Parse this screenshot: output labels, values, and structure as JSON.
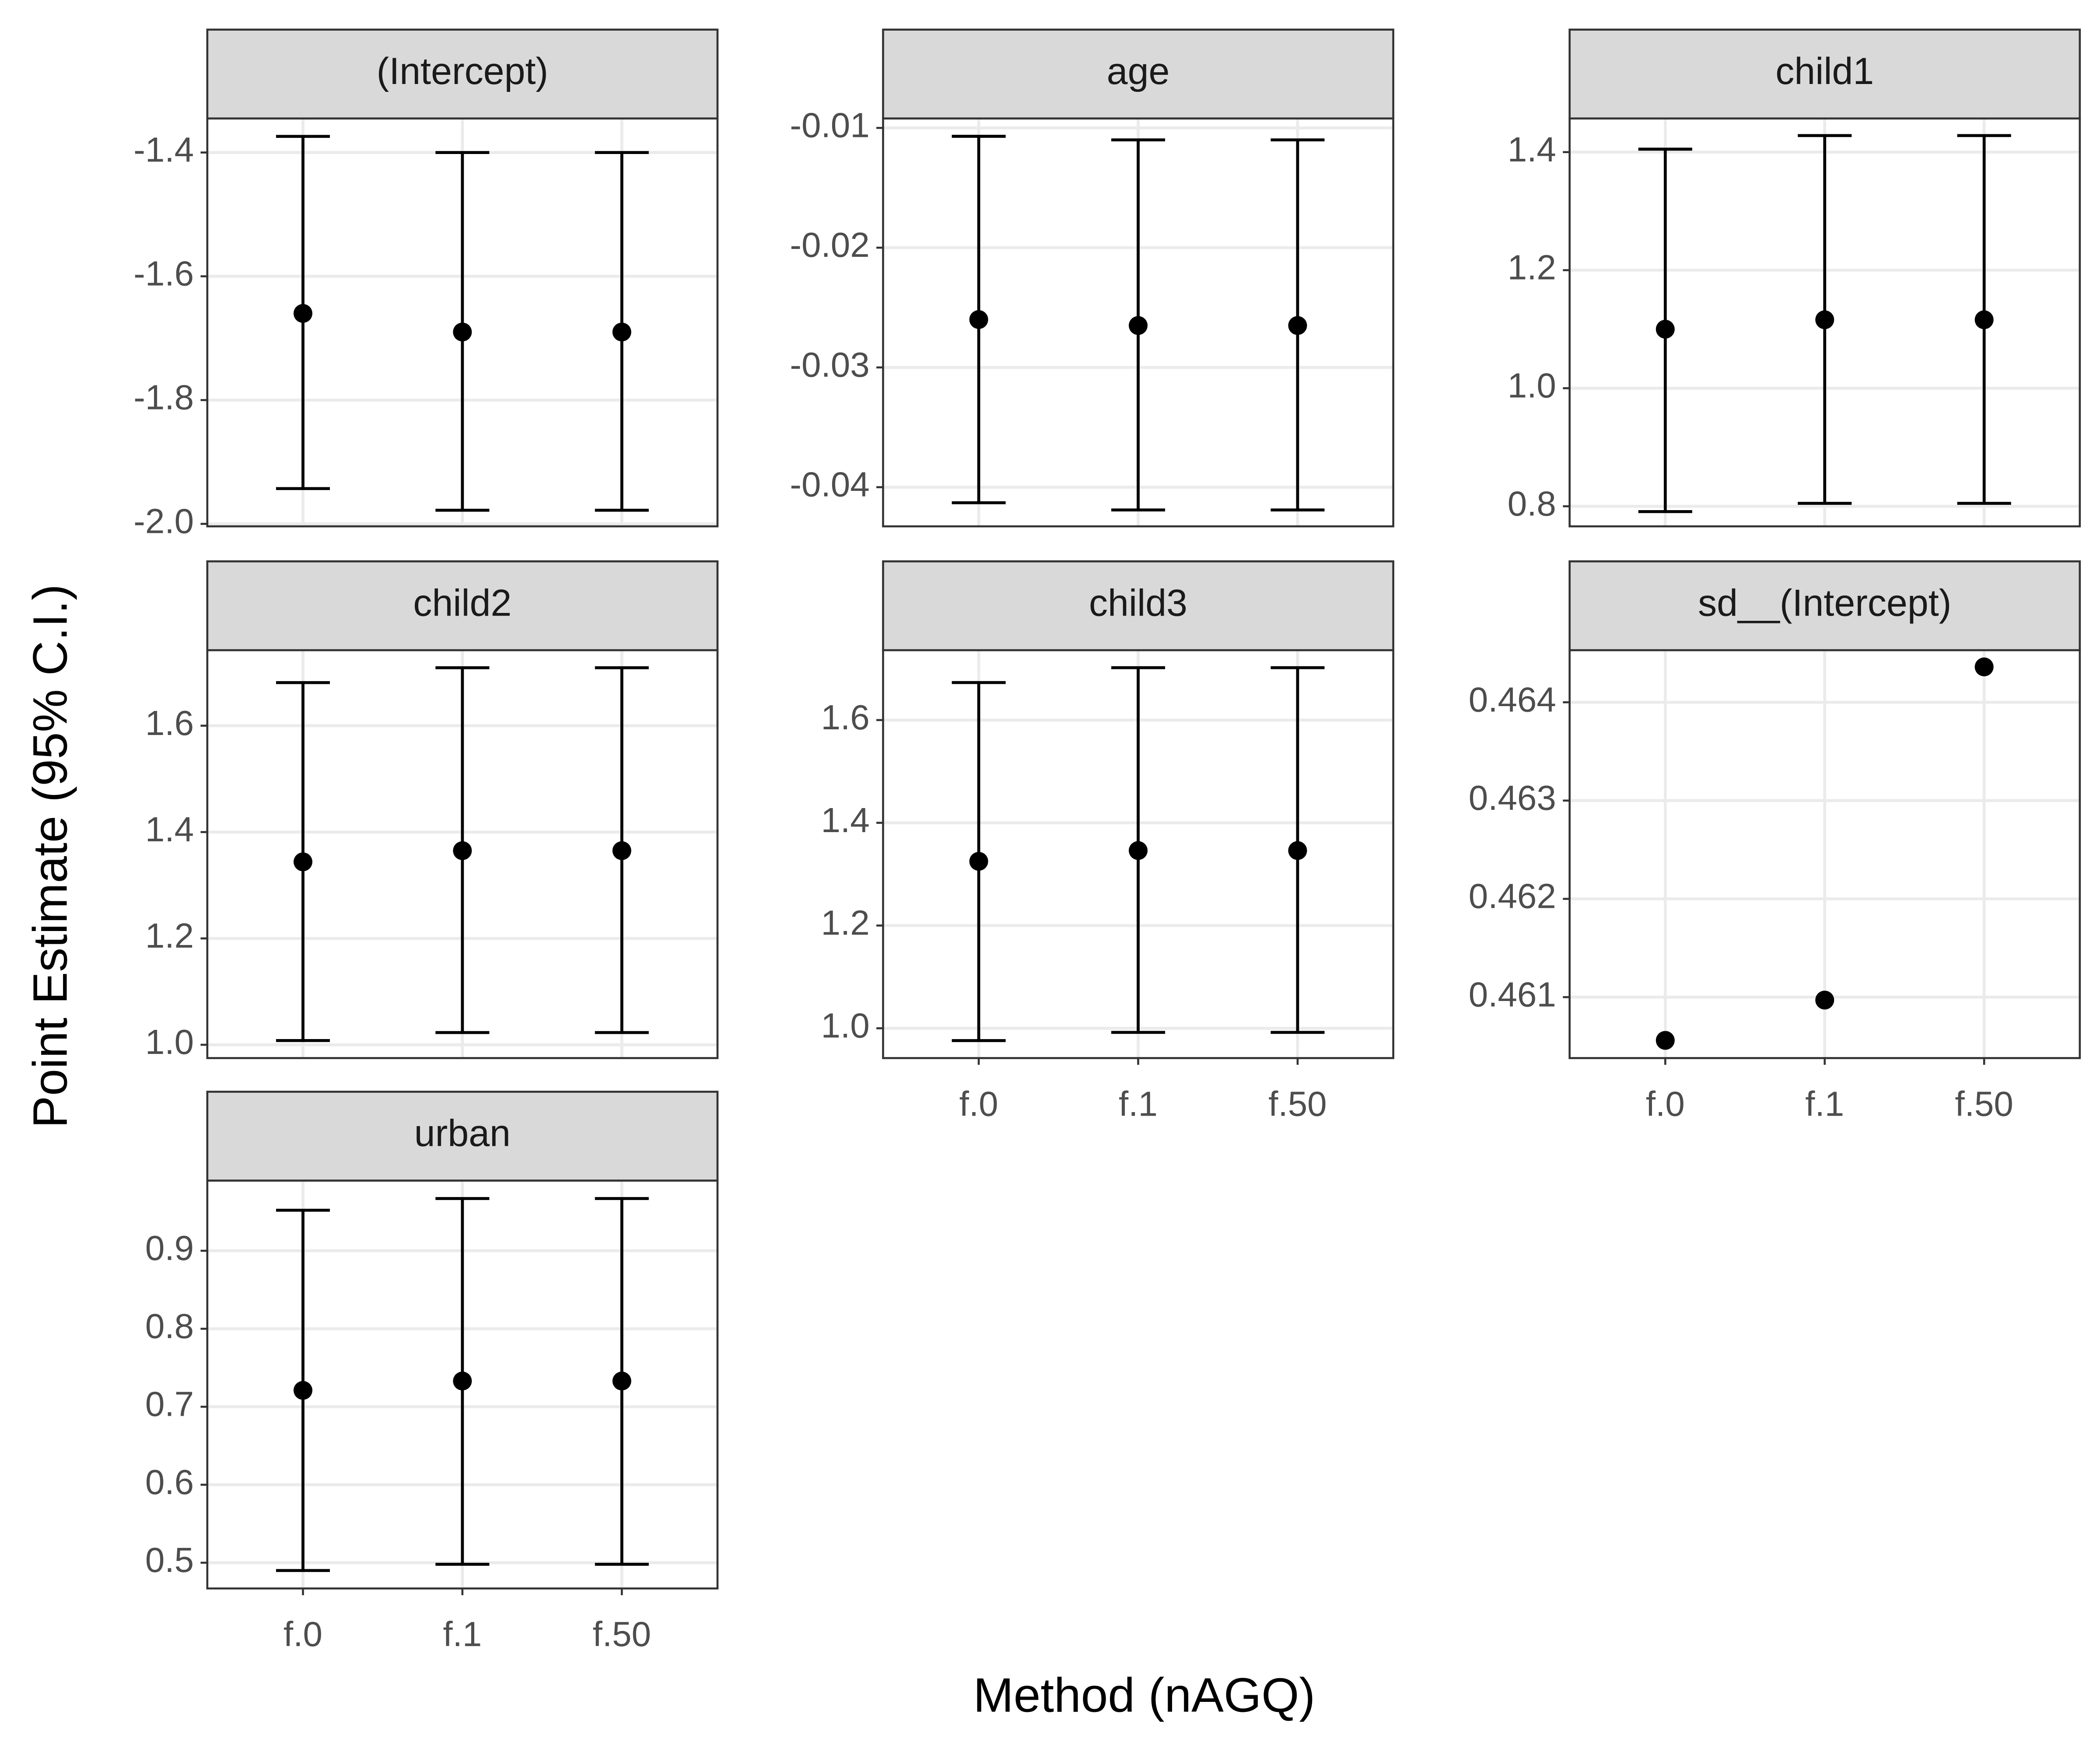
{
  "x_label": "Method (nAGQ)",
  "y_label": "Point Estimate (95% C.I.)",
  "chart_data": [
    {
      "type": "errorbar",
      "title": "(Intercept)",
      "categories": [
        "f.0",
        "f.1",
        "f.50"
      ],
      "values": [
        -1.66,
        -1.69,
        -1.69
      ],
      "lower": [
        -1.943,
        -1.978,
        -1.978
      ],
      "upper": [
        -1.374,
        -1.4,
        -1.4
      ],
      "ylim": [
        -2.004,
        -1.345
      ],
      "yticks": [
        {
          "value": -2.0,
          "label": "-2.0"
        },
        -1.8,
        -1.6,
        -1.4
      ]
    },
    {
      "type": "errorbar",
      "title": "age",
      "categories": [
        "f.0",
        "f.1",
        "f.50"
      ],
      "values": [
        -0.026,
        -0.0265,
        -0.0265
      ],
      "lower": [
        -0.0413,
        -0.0419,
        -0.0419
      ],
      "upper": [
        -0.0107,
        -0.011,
        -0.011
      ],
      "ylim": [
        -0.04327,
        -0.00921
      ],
      "yticks": [
        -0.04,
        -0.03,
        -0.02,
        -0.01
      ]
    },
    {
      "type": "errorbar",
      "title": "child1",
      "categories": [
        "f.0",
        "f.1",
        "f.50"
      ],
      "values": [
        1.1,
        1.116,
        1.116
      ],
      "lower": [
        0.791,
        0.805,
        0.805
      ],
      "upper": [
        1.405,
        1.428,
        1.428
      ],
      "ylim": [
        0.766,
        1.457
      ],
      "yticks": [
        0.8,
        {
          "value": 1.0,
          "label": "1.0"
        },
        1.2,
        1.4
      ]
    },
    {
      "type": "errorbar",
      "title": "child2",
      "categories": [
        "f.0",
        "f.1",
        "f.50"
      ],
      "values": [
        1.344,
        1.365,
        1.365
      ],
      "lower": [
        1.008,
        1.023,
        1.023
      ],
      "upper": [
        1.681,
        1.709,
        1.709
      ],
      "ylim": [
        0.975,
        1.742
      ],
      "yticks": [
        {
          "value": 1.0,
          "label": "1.0"
        },
        1.2,
        1.4,
        1.6
      ]
    },
    {
      "type": "errorbar",
      "title": "child3",
      "categories": [
        "f.0",
        "f.1",
        "f.50"
      ],
      "values": [
        1.325,
        1.346,
        1.346
      ],
      "lower": [
        0.976,
        0.992,
        0.992
      ],
      "upper": [
        1.673,
        1.702,
        1.702
      ],
      "ylim": [
        0.942,
        1.736
      ],
      "yticks": [
        {
          "value": 1.0,
          "label": "1.0"
        },
        1.2,
        1.4,
        1.6
      ]
    },
    {
      "type": "errorbar",
      "title": "sd__(Intercept)",
      "categories": [
        "f.0",
        "f.1",
        "f.50"
      ],
      "values": [
        0.46056,
        0.46097,
        0.46436
      ],
      "ylim": [
        0.46038,
        0.46453
      ],
      "yticks": [
        0.461,
        0.462,
        0.463,
        0.464
      ]
    },
    {
      "type": "errorbar",
      "title": "urban",
      "categories": [
        "f.0",
        "f.1",
        "f.50"
      ],
      "values": [
        0.721,
        0.733,
        0.733
      ],
      "lower": [
        0.49,
        0.498,
        0.498
      ],
      "upper": [
        0.952,
        0.967,
        0.967
      ],
      "ylim": [
        0.467,
        0.99
      ],
      "yticks": [
        0.5,
        0.6,
        0.7,
        0.8,
        0.9
      ]
    }
  ]
}
